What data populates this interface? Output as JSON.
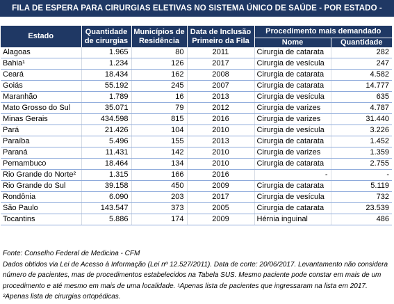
{
  "title": "FILA DE ESPERA PARA CIRURGIAS ELETIVAS NO SISTEMA ÚNICO DE SAÚDE - POR ESTADO -",
  "headers": {
    "estado": "Estado",
    "quantidade_l1": "Quantidade",
    "quantidade_l2": "de cirurgias",
    "municipios_l1": "Municípios de",
    "municipios_l2": "Residência",
    "data_l1": "Data de Inclusão",
    "data_l2": "Primeiro da Fila",
    "procedimento": "Procedimento mais demandado",
    "nome": "Nome",
    "quantidade_proc": "Quantidade"
  },
  "rows": [
    {
      "estado": "Alagoas",
      "quantidade": "1.965",
      "municipios": "80",
      "data": "2011",
      "nome": "Cirurgia de catarata",
      "qtd": "282"
    },
    {
      "estado": "Bahia¹",
      "quantidade": "1.234",
      "municipios": "126",
      "data": "2017",
      "nome": "Cirurgia de vesícula",
      "qtd": "247"
    },
    {
      "estado": "Ceará",
      "quantidade": "18.434",
      "municipios": "162",
      "data": "2008",
      "nome": "Cirurgia de catarata",
      "qtd": "4.582"
    },
    {
      "estado": "Goiás",
      "quantidade": "55.192",
      "municipios": "245",
      "data": "2007",
      "nome": "Cirurgia de catarata",
      "qtd": "14.777"
    },
    {
      "estado": "Maranhão",
      "quantidade": "1.789",
      "municipios": "16",
      "data": "2013",
      "nome": "Cirurgia de vesícula",
      "qtd": "635"
    },
    {
      "estado": "Mato Grosso do Sul",
      "quantidade": "35.071",
      "municipios": "79",
      "data": "2012",
      "nome": "Cirurgia de varizes",
      "qtd": "4.787"
    },
    {
      "estado": "Minas Gerais",
      "quantidade": "434.598",
      "municipios": "815",
      "data": "2016",
      "nome": "Cirurgia de varizes",
      "qtd": "31.440"
    },
    {
      "estado": "Pará",
      "quantidade": "21.426",
      "municipios": "104",
      "data": "2010",
      "nome": "Cirurgia de vesícula",
      "qtd": "3.226"
    },
    {
      "estado": "Paraíba",
      "quantidade": "5.496",
      "municipios": "155",
      "data": "2013",
      "nome": "Cirurgia de catarata",
      "qtd": "1.452"
    },
    {
      "estado": "Paraná",
      "quantidade": "11.431",
      "municipios": "142",
      "data": "2010",
      "nome": "Cirurgia de varizes",
      "qtd": "1.359"
    },
    {
      "estado": "Pernambuco",
      "quantidade": "18.464",
      "municipios": "134",
      "data": "2010",
      "nome": "Cirurgia de catarata",
      "qtd": "2.755"
    },
    {
      "estado": "Rio Grande do Norte²",
      "quantidade": "1.315",
      "municipios": "166",
      "data": "2016",
      "nome": "-",
      "qtd": "-"
    },
    {
      "estado": "Rio Grande do Sul",
      "quantidade": "39.158",
      "municipios": "450",
      "data": "2009",
      "nome": "Cirurgia de catarata",
      "qtd": "5.119"
    },
    {
      "estado": "Rondônia",
      "quantidade": "6.090",
      "municipios": "203",
      "data": "2017",
      "nome": "Cirurgia de vesícula",
      "qtd": "732"
    },
    {
      "estado": "São Paulo",
      "quantidade": "143.547",
      "municipios": "373",
      "data": "2005",
      "nome": "Cirurgia de catarata",
      "qtd": "23.539"
    },
    {
      "estado": "Tocantins",
      "quantidade": "5.886",
      "municipios": "174",
      "data": "2009",
      "nome": "Hérnia inguinal",
      "qtd": "486"
    }
  ],
  "source": "Fonte: Conselho Federal de Medicina - CFM",
  "note": "Dados obtidos via Lei de Acesso à Informação (Lei nº 12.527/2011). Data de corte: 20/06/2017. Levantamento não considera número de pacientes, mas de procedimentos estabelecidos na Tabela SUS. Mesmo paciente pode constar em mais de um procedimento e até mesmo em mais de uma localidade. ¹Apenas lista de pacientes que ingressaram na lista em 2017. ²Apenas lista de cirurgias ortopédicas.",
  "colors": {
    "header_bg": "#1f3864",
    "row_border": "#8eaadb"
  }
}
